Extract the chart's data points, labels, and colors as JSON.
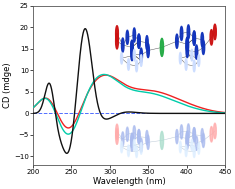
{
  "xlabel": "Wavelength (nm)",
  "ylabel": "CD (mdge)",
  "xlim": [
    200,
    450
  ],
  "ylim": [
    -12,
    25
  ],
  "yticks": [
    -10,
    -5,
    0,
    5,
    10,
    15,
    20,
    25
  ],
  "xticks": [
    200,
    250,
    300,
    350,
    400,
    450
  ],
  "background_color": "#ffffff",
  "dashed_zero_color": "#3355ff",
  "black_line_color": "#111111",
  "cyan_line_color": "#00ccaa",
  "red_line_color": "#ee2222",
  "mol_upper_blue": "#1133bb",
  "mol_upper_red": "#cc1111",
  "mol_upper_white": "#ccddff",
  "mol_upper_cyan": "#00aaaa",
  "mol_lower_blue": "#aabbee",
  "mol_lower_red": "#ffaaaa",
  "mol_lower_cyan": "#aadddd"
}
